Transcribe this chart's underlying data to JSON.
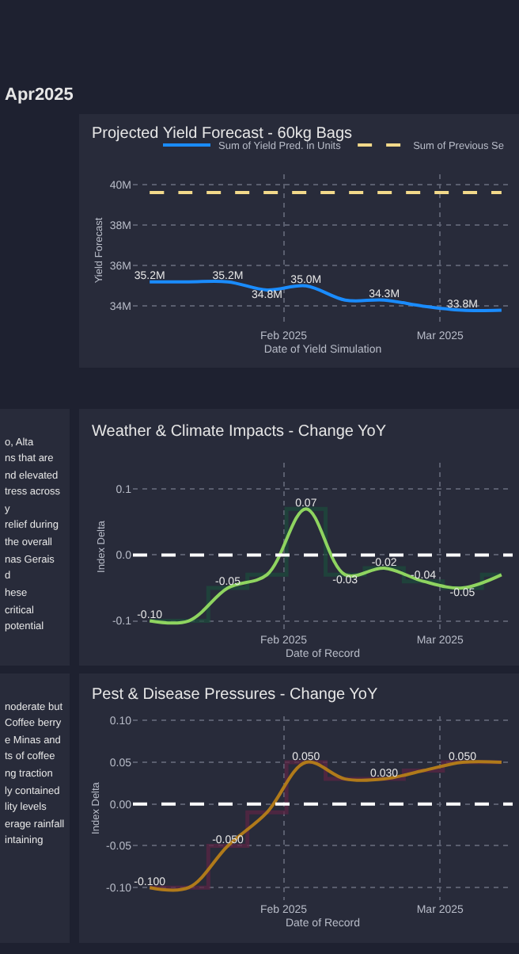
{
  "chart_data": [
    {
      "type": "other",
      "title": "Apr2025"
    },
    {
      "type": "line",
      "title": "Projected Yield Forecast - 60kg Bags",
      "xlabel": "Date of Yield Simulation",
      "ylabel": "Yield Forecast",
      "x": [
        "2025-01-08",
        "2025-01-15",
        "2025-01-22",
        "2025-01-29",
        "2025-02-05",
        "2025-02-12",
        "2025-02-19",
        "2025-02-26",
        "2025-03-05",
        "2025-03-12"
      ],
      "series": [
        {
          "name": "Sum of Yield Pred. in Units",
          "color": "#1a8cff",
          "values": [
            35200000,
            35200000,
            35200000,
            34800000,
            35000000,
            34300000,
            34300000,
            34000000,
            33800000,
            33800000
          ],
          "value_labels": [
            "35.2M",
            null,
            "35.2M",
            "34.8M",
            "35.0M",
            null,
            "34.3M",
            null,
            "33.8M",
            null
          ]
        },
        {
          "name": "Sum of Previous Se",
          "color": "#f2d98a",
          "line_style": "dashed",
          "values": [
            39600000,
            39600000,
            39600000,
            39600000,
            39600000,
            39600000,
            39600000,
            39600000,
            39600000,
            39600000
          ]
        }
      ],
      "xlim": [
        "2025-01-05",
        "2025-03-14"
      ],
      "xticks": [
        {
          "value": "2025-02-01",
          "label": "Feb 2025"
        },
        {
          "value": "2025-03-01",
          "label": "Mar 2025"
        }
      ],
      "ylim": [
        33000000,
        40500000
      ],
      "yticks": [
        {
          "value": 34000000,
          "label": "34M"
        },
        {
          "value": 36000000,
          "label": "36M"
        },
        {
          "value": 38000000,
          "label": "38M"
        },
        {
          "value": 40000000,
          "label": "40M"
        }
      ],
      "grid": true,
      "legend": "top right",
      "marker": "none"
    },
    {
      "type": "other",
      "annotations": [
        "o, Alta",
        "ns that are",
        "nd elevated",
        "tress across",
        "y",
        "relief during",
        "the overall",
        "nas Gerais",
        "d",
        "hese",
        "critical",
        "potential"
      ]
    },
    {
      "type": "line",
      "title": "Weather & Climate Impacts - Change YoY",
      "xlabel": "Date of Record",
      "ylabel": "Index Delta",
      "x": [
        "2025-01-08",
        "2025-01-15",
        "2025-01-22",
        "2025-01-29",
        "2025-02-05",
        "2025-02-12",
        "2025-02-19",
        "2025-02-26",
        "2025-03-05",
        "2025-03-12"
      ],
      "series": [
        {
          "type": "step",
          "color": "#1d4a3c",
          "values": [
            -0.1,
            -0.1,
            -0.05,
            -0.03,
            0.07,
            -0.03,
            -0.02,
            -0.04,
            -0.05,
            -0.03
          ]
        },
        {
          "color": "#8fd460",
          "values": [
            -0.1,
            -0.1,
            -0.05,
            -0.03,
            0.07,
            -0.03,
            -0.02,
            -0.04,
            -0.05,
            -0.03
          ],
          "value_labels": [
            "-0.10",
            null,
            "-0.05",
            null,
            "0.07",
            "-0.03",
            "-0.02",
            "-0.04",
            "-0.05",
            null
          ]
        }
      ],
      "xlim": [
        "2025-01-05",
        "2025-03-14"
      ],
      "xticks": [
        {
          "value": "2025-02-01",
          "label": "Feb 2025"
        },
        {
          "value": "2025-03-01",
          "label": "Mar 2025"
        }
      ],
      "ylim": [
        -0.115,
        0.14
      ],
      "yticks": [
        {
          "value": -0.1,
          "label": "-0.1"
        },
        {
          "value": 0,
          "label": "0.0"
        },
        {
          "value": 0.1,
          "label": "0.1"
        }
      ],
      "grid": true,
      "marker": "none",
      "ref_lines": [
        {
          "axis": "y",
          "value": 0,
          "color": "#ffffff",
          "line_style": "dashed"
        }
      ]
    },
    {
      "type": "other",
      "annotations": [
        "noderate but",
        "Coffee berry",
        "e Minas and",
        "ts of coffee",
        "ng traction",
        "ly contained",
        "lity levels",
        "erage rainfall",
        "intaining"
      ]
    },
    {
      "type": "line",
      "title": "Pest & Disease Pressures - Change YoY",
      "xlabel": "Date of Record",
      "ylabel": "Index Delta",
      "x": [
        "2025-01-08",
        "2025-01-15",
        "2025-01-22",
        "2025-01-29",
        "2025-02-05",
        "2025-02-12",
        "2025-02-19",
        "2025-02-26",
        "2025-03-05",
        "2025-03-12"
      ],
      "series": [
        {
          "type": "step",
          "color": "#5a2544",
          "values": [
            -0.1,
            -0.1,
            -0.05,
            -0.01,
            0.05,
            0.03,
            0.03,
            0.04,
            0.05,
            0.05
          ]
        },
        {
          "color": "#b07a1a",
          "values": [
            -0.1,
            -0.1,
            -0.05,
            -0.01,
            0.05,
            0.03,
            0.03,
            0.04,
            0.05,
            0.05
          ],
          "value_labels": [
            "-0.100",
            null,
            "-0.050",
            null,
            "0.050",
            null,
            "0.030",
            null,
            "0.050",
            null
          ]
        }
      ],
      "xlim": [
        "2025-01-05",
        "2025-03-14"
      ],
      "xticks": [
        {
          "value": "2025-02-01",
          "label": "Feb 2025"
        },
        {
          "value": "2025-03-01",
          "label": "Mar 2025"
        }
      ],
      "ylim": [
        -0.115,
        0.105
      ],
      "yticks": [
        {
          "value": -0.1,
          "label": "-0.10"
        },
        {
          "value": -0.05,
          "label": "-0.05"
        },
        {
          "value": 0,
          "label": "0.00"
        },
        {
          "value": 0.05,
          "label": "0.05"
        },
        {
          "value": 0.1,
          "label": "0.10"
        }
      ],
      "grid": true,
      "marker": "none",
      "ref_lines": [
        {
          "axis": "y",
          "value": 0,
          "color": "#ffffff",
          "line_style": "dashed"
        }
      ]
    }
  ]
}
